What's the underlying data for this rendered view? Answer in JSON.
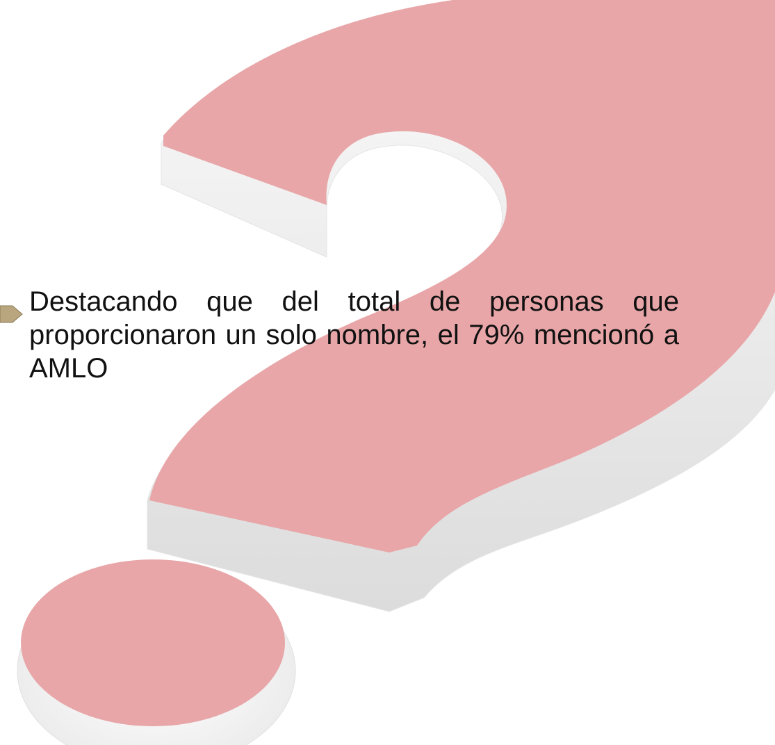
{
  "slide": {
    "text": "Destacando que del total de personas que proporcionaron un solo nombre, el 79% mencionó a AMLO"
  }
}
